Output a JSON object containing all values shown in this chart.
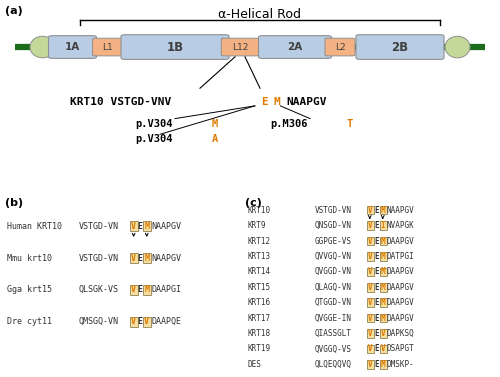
{
  "title": "α-Helical Rod",
  "panel_a_label": "(a)",
  "panel_b_label": "(b)",
  "panel_c_label": "(c)",
  "rod_color": "#1a6b1a",
  "domain_color": "#b8cce4",
  "linker_color": "#f4b183",
  "cap_color": "#c4d89a",
  "bg_color": "#ffffff",
  "orange_color": "#e07b00",
  "box_fill": "#f5dfa0",
  "box_edge": "#a09060",
  "species_b": [
    {
      "name": "Human KRT10",
      "seq": "VSTGD-VN",
      "v": "V",
      "e": "E",
      "m": "M",
      "rest": "NAAPGV"
    },
    {
      "name": "Mmu krt10",
      "seq": "VSTGD-VN",
      "v": "V",
      "e": "E",
      "m": "M",
      "rest": "NAAPGV"
    },
    {
      "name": "Gga krt15",
      "seq": "QLSGK-VS",
      "v": "V",
      "e": "E",
      "m": "M",
      "rest": "DAAPGI"
    },
    {
      "name": "Dre cyt11",
      "seq": "QMSGQ-VN",
      "v": "V",
      "e": "E",
      "m": "V",
      "rest": "DAAPQE"
    }
  ],
  "species_c": [
    {
      "name": "KRT10",
      "seq": "VSTGD-VN",
      "v": "V",
      "e": "E",
      "m": "M",
      "rest": "NAAPGV"
    },
    {
      "name": "KRT9",
      "seq": "QNSGD-VN",
      "v": "V",
      "e": "E",
      "m": "I",
      "rest": "NVAPGK"
    },
    {
      "name": "KRT12",
      "seq": "GGPGE-VS",
      "v": "V",
      "e": "E",
      "m": "M",
      "rest": "DAAPGV"
    },
    {
      "name": "KRT13",
      "seq": "QVVGQ-VN",
      "v": "V",
      "e": "E",
      "m": "M",
      "rest": "DATPGI"
    },
    {
      "name": "KRT14",
      "seq": "QVGGD-VN",
      "v": "V",
      "e": "E",
      "m": "M",
      "rest": "DAAPGV"
    },
    {
      "name": "KRT15",
      "seq": "QLAGQ-VN",
      "v": "V",
      "e": "E",
      "m": "M",
      "rest": "DAAPGV"
    },
    {
      "name": "KRT16",
      "seq": "QTGGD-VN",
      "v": "V",
      "e": "E",
      "m": "M",
      "rest": "DAAPGV"
    },
    {
      "name": "KRT17",
      "seq": "QVGGE-IN",
      "v": "V",
      "e": "E",
      "m": "M",
      "rest": "DAAPGV"
    },
    {
      "name": "KRT18",
      "seq": "QIASSGLT",
      "v": "V",
      "e": "E",
      "m": "V",
      "rest": "DAPKSQ"
    },
    {
      "name": "KRT19",
      "seq": "QVGGQ-VS",
      "v": "V",
      "e": "E",
      "m": "V",
      "rest": "DSAPGT"
    },
    {
      "name": "DES",
      "seq": "QLQEQQVQ",
      "v": "V",
      "e": "E",
      "m": "M",
      "rest": "DMSKP-"
    }
  ]
}
